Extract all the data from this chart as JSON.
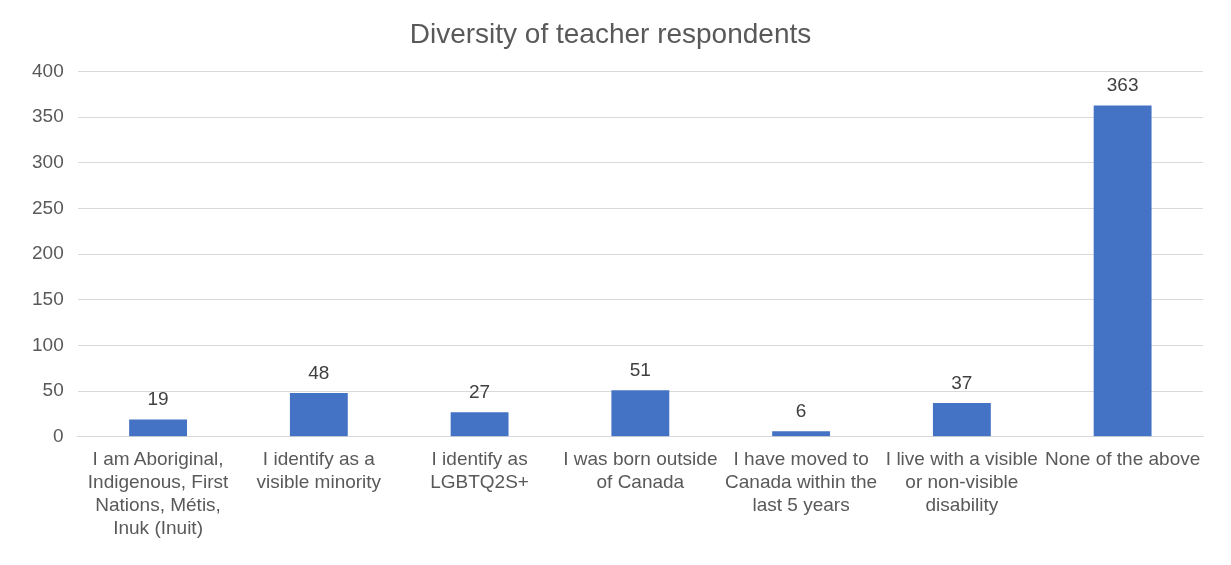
{
  "chart_data": {
    "type": "bar",
    "title": "Diversity of teacher respondents",
    "categories": [
      "I am Aboriginal, Indigenous, First Nations, Métis, Inuk (Inuit)",
      "I identify as a visible minority",
      "I identify as LGBTQ2S+",
      "I was born outside of Canada",
      "I have moved to Canada within the last 5 years",
      "I live with a visible or non-visible disability",
      "None of the above"
    ],
    "values": [
      19,
      48,
      27,
      51,
      6,
      37,
      363
    ],
    "color": "#4472c4",
    "ylim": [
      0,
      400
    ],
    "yticks": [
      0,
      50,
      100,
      150,
      200,
      250,
      300,
      350,
      400
    ],
    "grid": "y",
    "legend": false,
    "data_labels": true
  }
}
